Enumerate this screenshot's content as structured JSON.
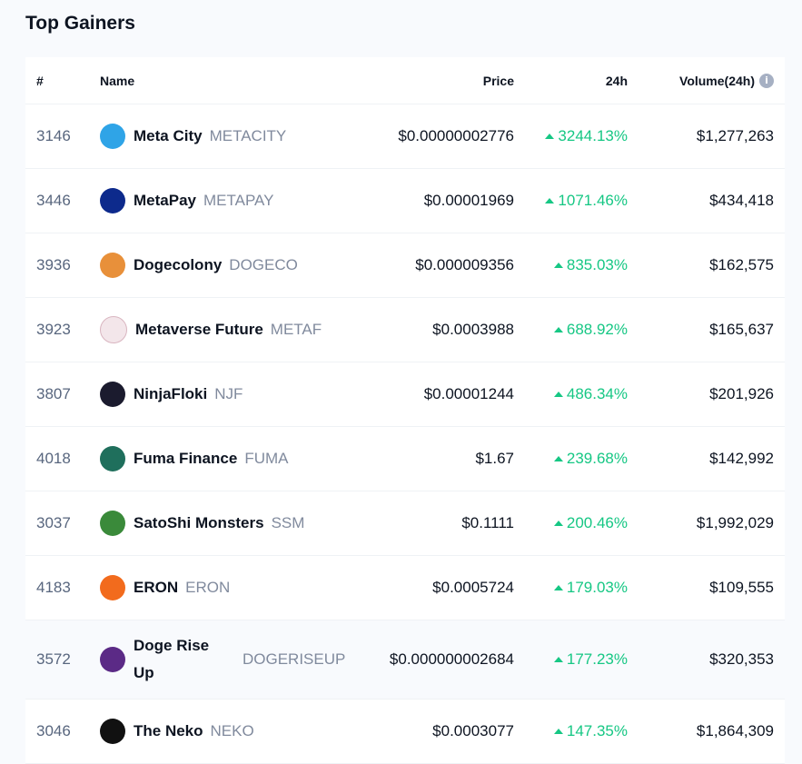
{
  "title": "Top Gainers",
  "columns": {
    "rank": "#",
    "name": "Name",
    "price": "Price",
    "change": "24h",
    "volume": "Volume(24h)"
  },
  "rows": [
    {
      "rank": "3146",
      "name": "Meta City",
      "symbol": "METACITY",
      "price": "$0.00000002776",
      "change": "3244.13%",
      "volume": "$1,277,263",
      "logo_color": "#2fa4e7"
    },
    {
      "rank": "3446",
      "name": "MetaPay",
      "symbol": "METAPAY",
      "price": "$0.00001969",
      "change": "1071.46%",
      "volume": "$434,418",
      "logo_color": "#0d2a8c"
    },
    {
      "rank": "3936",
      "name": "Dogecolony",
      "symbol": "DOGECO",
      "price": "$0.000009356",
      "change": "835.03%",
      "volume": "$162,575",
      "logo_color": "#e8903a"
    },
    {
      "rank": "3923",
      "name": "Metaverse Future",
      "symbol": "METAF",
      "price": "$0.0003988",
      "change": "688.92%",
      "volume": "$165,637",
      "logo_color": "#f3e6ea"
    },
    {
      "rank": "3807",
      "name": "NinjaFloki",
      "symbol": "NJF",
      "price": "$0.00001244",
      "change": "486.34%",
      "volume": "$201,926",
      "logo_color": "#1b1b2e"
    },
    {
      "rank": "4018",
      "name": "Fuma Finance",
      "symbol": "FUMA",
      "price": "$1.67",
      "change": "239.68%",
      "volume": "$142,992",
      "logo_color": "#1f6f5c"
    },
    {
      "rank": "3037",
      "name": "SatoShi Monsters",
      "symbol": "SSM",
      "price": "$0.1111",
      "change": "200.46%",
      "volume": "$1,992,029",
      "logo_color": "#3a8a3a"
    },
    {
      "rank": "4183",
      "name": "ERON",
      "symbol": "ERON",
      "price": "$0.0005724",
      "change": "179.03%",
      "volume": "$109,555",
      "logo_color": "#f26b1d"
    },
    {
      "rank": "3572",
      "name": "Doge Rise Up",
      "symbol": "DOGERISEUP",
      "price": "$0.000000002684",
      "change": "177.23%",
      "volume": "$320,353",
      "logo_color": "#5b2a86"
    },
    {
      "rank": "3046",
      "name": "The Neko",
      "symbol": "NEKO",
      "price": "$0.0003077",
      "change": "147.35%",
      "volume": "$1,864,309",
      "logo_color": "#111111"
    }
  ]
}
